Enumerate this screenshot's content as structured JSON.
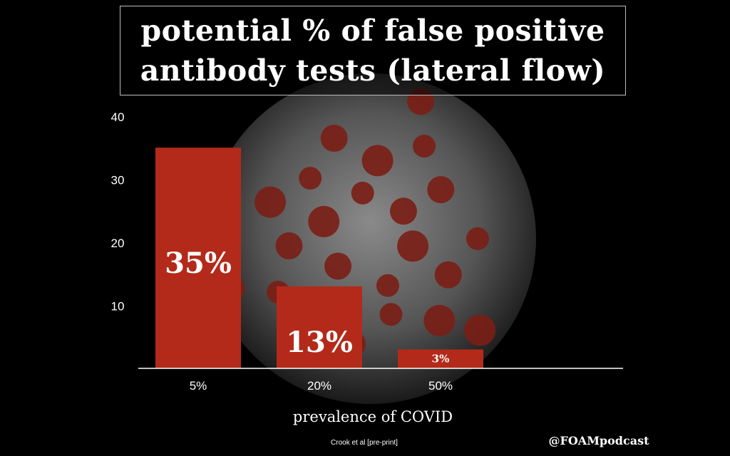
{
  "title_lines": [
    "potential % of false positive",
    "antibody tests (lateral flow)"
  ],
  "chart_data": {
    "type": "bar",
    "title": "potential % of false positive antibody tests (lateral flow)",
    "categories": [
      "5%",
      "20%",
      "50%"
    ],
    "values": [
      35,
      13,
      3
    ],
    "data_labels": [
      "35%",
      "13%",
      "3%"
    ],
    "xlabel": "prevalence of COVID",
    "ylabel": "",
    "ylim": [
      0,
      40
    ],
    "yticks": [
      10,
      20,
      30,
      40
    ],
    "grid": false,
    "bar_color": "#b32a1a"
  },
  "footer": {
    "citation": "Crook et al [pre-print]",
    "handle": "@FOAMpodcast"
  },
  "colors": {
    "background": "#000000",
    "virus_body": "#5b5b5b",
    "virus_spike": "#7a1e16",
    "text": "#ffffff"
  }
}
